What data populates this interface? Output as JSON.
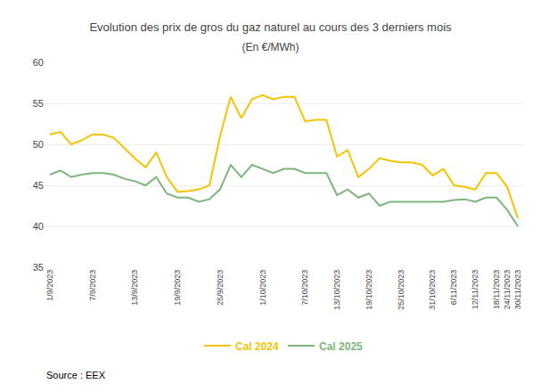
{
  "chart_data": {
    "type": "line",
    "title": "Evolution des prix de gros du gaz naturel au cours des 3 derniers mois",
    "subtitle": "(En €/MWh)",
    "annotations": [
      "Source : EEX"
    ],
    "categories": [
      "1/9/2023",
      null,
      null,
      null,
      "7/9/2023",
      null,
      null,
      null,
      "13/9/2023",
      null,
      null,
      null,
      "19/9/2023",
      null,
      null,
      null,
      "25/9/2023",
      null,
      null,
      null,
      "1/10/2023",
      null,
      null,
      null,
      "7/10/2023",
      null,
      null,
      "13/10/2023",
      null,
      null,
      "19/10/2023",
      null,
      null,
      "25/10/2023",
      null,
      null,
      "31/10/2023",
      null,
      "6/11/2023",
      null,
      "12/11/2023",
      null,
      "18/11/2023",
      "24/11/2023",
      "30/11/2023"
    ],
    "series": [
      {
        "name": "Cal 2024",
        "color": "#F5C400",
        "values": [
          51.2,
          51.5,
          50.0,
          50.5,
          51.2,
          51.2,
          50.8,
          49.5,
          48.3,
          47.2,
          49.0,
          46.0,
          44.2,
          44.3,
          44.5,
          45.0,
          51.0,
          55.8,
          53.2,
          55.5,
          56.0,
          55.5,
          55.8,
          55.8,
          52.8,
          53.0,
          53.0,
          48.5,
          49.3,
          46.0,
          47.0,
          48.3,
          48.0,
          47.8,
          47.8,
          47.5,
          46.2,
          47.0,
          45.0,
          44.8,
          44.5,
          46.5,
          46.5,
          44.8,
          41.0
        ]
      },
      {
        "name": "Cal 2025",
        "color": "#7DB57D",
        "values": [
          46.3,
          46.8,
          46.0,
          46.3,
          46.5,
          46.5,
          46.3,
          45.8,
          45.5,
          45.0,
          46.0,
          44.0,
          43.5,
          43.5,
          43.0,
          43.3,
          44.5,
          47.5,
          46.0,
          47.5,
          47.0,
          46.5,
          47.0,
          47.0,
          46.5,
          46.5,
          46.5,
          43.8,
          44.5,
          43.5,
          44.0,
          42.5,
          43.0,
          43.0,
          43.0,
          43.0,
          43.0,
          43.0,
          43.2,
          43.3,
          43.0,
          43.5,
          43.5,
          42.0,
          40.0
        ]
      }
    ],
    "ylim": [
      35,
      60
    ],
    "yticks": [
      35,
      40,
      45,
      50,
      55,
      60
    ],
    "grid": true,
    "legend": "bottom"
  }
}
